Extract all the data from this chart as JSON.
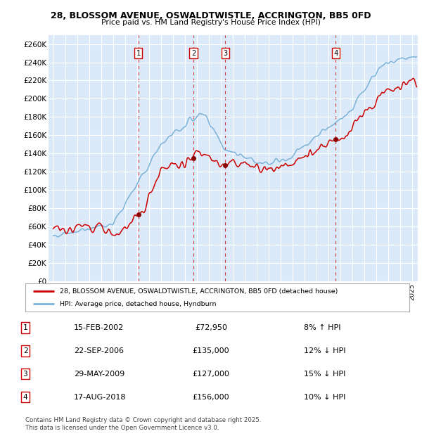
{
  "title": "28, BLOSSOM AVENUE, OSWALDTWISTLE, ACCRINGTON, BB5 0FD",
  "subtitle": "Price paid vs. HM Land Registry's House Price Index (HPI)",
  "ylim": [
    0,
    270000
  ],
  "yticks": [
    0,
    20000,
    40000,
    60000,
    80000,
    100000,
    120000,
    140000,
    160000,
    180000,
    200000,
    220000,
    240000,
    260000
  ],
  "ytick_labels": [
    "£0",
    "£20K",
    "£40K",
    "£60K",
    "£80K",
    "£100K",
    "£120K",
    "£140K",
    "£160K",
    "£180K",
    "£200K",
    "£220K",
    "£240K",
    "£260K"
  ],
  "bg_color": "#dce9f8",
  "line_color_hpi": "#7ab3d9",
  "line_color_price": "#cc0000",
  "legend_label_price": "28, BLOSSOM AVENUE, OSWALDTWISTLE, ACCRINGTON, BB5 0FD (detached house)",
  "legend_label_hpi": "HPI: Average price, detached house, Hyndburn",
  "transactions": [
    {
      "num": 1,
      "date": "15-FEB-2002",
      "price": 72950,
      "pct": "8%",
      "dir": "↑",
      "year_x": 2002.12
    },
    {
      "num": 2,
      "date": "22-SEP-2006",
      "price": 135000,
      "pct": "12%",
      "dir": "↓",
      "year_x": 2006.72
    },
    {
      "num": 3,
      "date": "29-MAY-2009",
      "price": 127000,
      "pct": "15%",
      "dir": "↓",
      "year_x": 2009.4
    },
    {
      "num": 4,
      "date": "17-AUG-2018",
      "price": 156000,
      "pct": "10%",
      "dir": "↓",
      "year_x": 2018.63
    }
  ],
  "footer": "Contains HM Land Registry data © Crown copyright and database right 2025.\nThis data is licensed under the Open Government Licence v3.0.",
  "table_rows": [
    [
      "1",
      "15-FEB-2002",
      "£72,950",
      "8% ↑ HPI"
    ],
    [
      "2",
      "22-SEP-2006",
      "£135,000",
      "12% ↓ HPI"
    ],
    [
      "3",
      "29-MAY-2009",
      "£127,000",
      "15% ↓ HPI"
    ],
    [
      "4",
      "17-AUG-2018",
      "£156,000",
      "10% ↓ HPI"
    ]
  ],
  "xlim_start": 1994.6,
  "xlim_end": 2025.5
}
